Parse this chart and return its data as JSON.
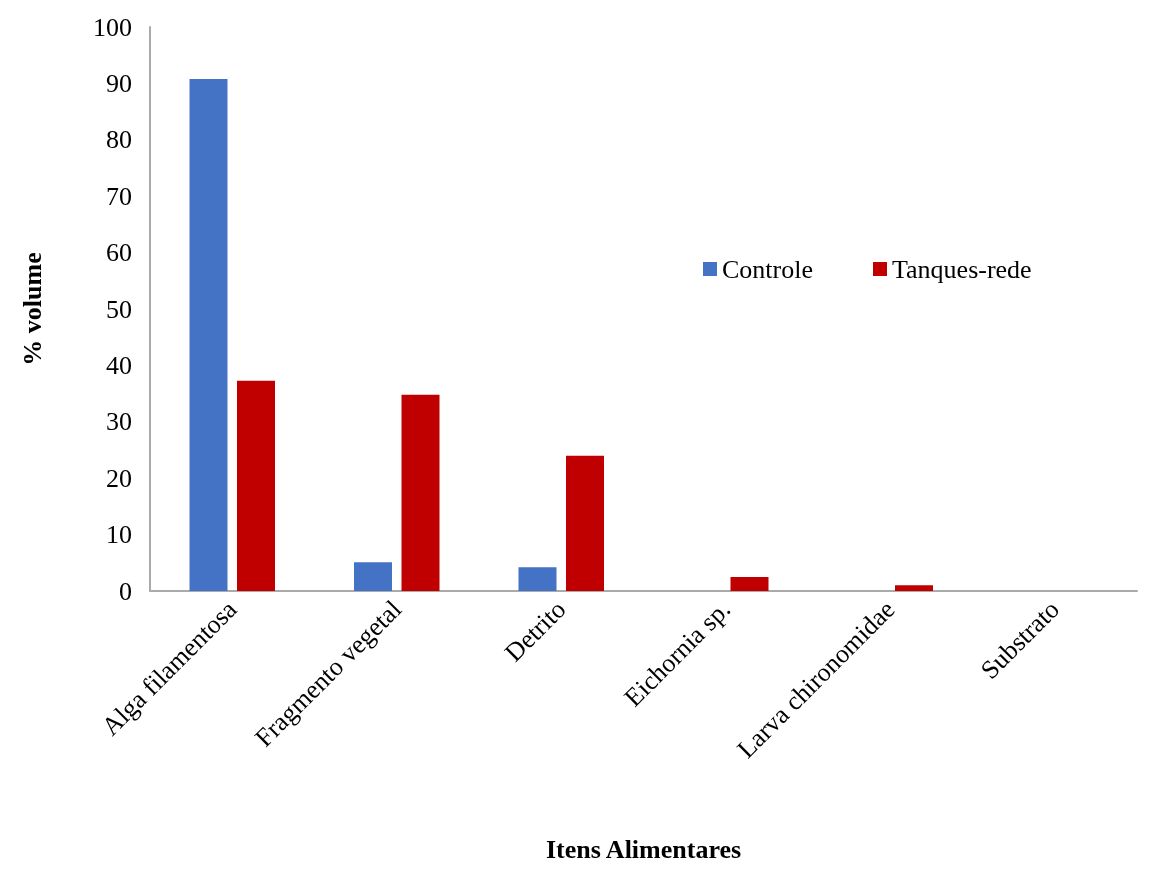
{
  "chart_data": {
    "type": "bar",
    "xlabel": "Itens Alimentares",
    "ylabel": "% volume",
    "categories": [
      "Alga filamentosa",
      "Fragmento vegetal",
      "Detrito",
      "Eichornia sp.",
      "Larva chironomidae",
      "Substrato"
    ],
    "series": [
      {
        "name": "Controle",
        "color": "#4472c4",
        "values": [
          90.8,
          5.1,
          4.2,
          0,
          0,
          0
        ]
      },
      {
        "name": "Tanques-rede",
        "color": "#c00000",
        "values": [
          37.3,
          34.8,
          24.0,
          2.5,
          1.0,
          0
        ]
      }
    ],
    "ylim": [
      0,
      100
    ],
    "yticks": [
      0,
      10,
      20,
      30,
      40,
      50,
      60,
      70,
      80,
      90,
      100
    ],
    "grid": false,
    "legend": "right"
  }
}
